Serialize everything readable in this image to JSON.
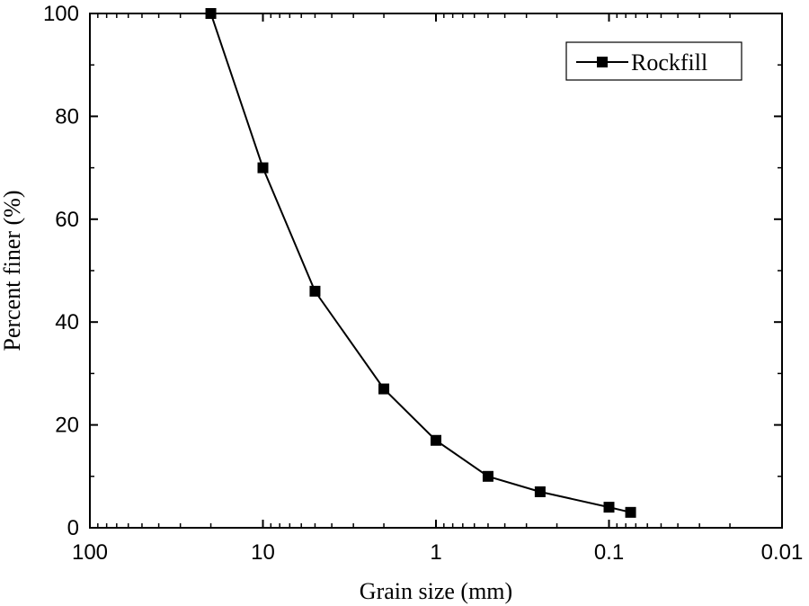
{
  "chart_data": {
    "type": "line",
    "title": "",
    "xlabel": "Grain size (mm)",
    "ylabel": "Percent finer (%)",
    "xscale": "log",
    "x_reversed": true,
    "xlim": [
      100,
      0.01
    ],
    "ylim": [
      0,
      100
    ],
    "xticks": [
      100,
      10,
      1,
      0.1,
      0.01
    ],
    "xtick_labels": [
      "100",
      "10",
      "1",
      "0.1",
      "0.01"
    ],
    "yticks": [
      0,
      20,
      40,
      60,
      80,
      100
    ],
    "ytick_labels": [
      "0",
      "20",
      "40",
      "60",
      "80",
      "100"
    ],
    "grid": false,
    "legend_position": "top-right",
    "series": [
      {
        "name": "Rockfill",
        "marker": "square",
        "color": "#000000",
        "x": [
          20,
          10,
          5,
          2,
          1,
          0.5,
          0.25,
          0.1,
          0.075
        ],
        "y": [
          100,
          70,
          46,
          27,
          17,
          10,
          7,
          4,
          3
        ]
      }
    ]
  }
}
